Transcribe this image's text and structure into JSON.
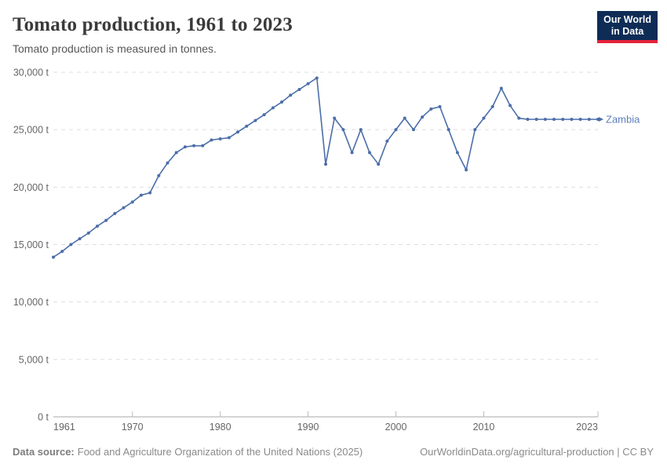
{
  "header": {
    "title": "Tomato production, 1961 to 2023",
    "subtitle": "Tomato production is measured in tonnes."
  },
  "logo": {
    "line1": "Our World",
    "line2": "in Data",
    "bg_color": "#0e2c55",
    "accent_color": "#e5233c"
  },
  "footer": {
    "source_label": "Data source:",
    "source_text": "Food and Agriculture Organization of the United Nations (2025)",
    "right_text": "OurWorldinData.org/agricultural-production | CC BY"
  },
  "chart_data": {
    "type": "line",
    "title": "Tomato production, 1961 to 2023",
    "subtitle": "Tomato production is measured in tonnes.",
    "xlabel": "",
    "ylabel": "",
    "unit": "t",
    "xlim": [
      1961,
      2023
    ],
    "ylim": [
      0,
      30000
    ],
    "x_ticks": [
      1961,
      1970,
      1980,
      1990,
      2000,
      2010,
      2023
    ],
    "y_ticks": [
      0,
      5000,
      10000,
      15000,
      20000,
      25000,
      30000
    ],
    "grid": true,
    "legend_position": "end-of-line-label",
    "series": [
      {
        "name": "Zambia",
        "color": "#4c6ea9",
        "label_color": "#5c7db9",
        "x": [
          1961,
          1962,
          1963,
          1964,
          1965,
          1966,
          1967,
          1968,
          1969,
          1970,
          1971,
          1972,
          1973,
          1974,
          1975,
          1976,
          1977,
          1978,
          1979,
          1980,
          1981,
          1982,
          1983,
          1984,
          1985,
          1986,
          1987,
          1988,
          1989,
          1990,
          1991,
          1992,
          1993,
          1994,
          1995,
          1996,
          1997,
          1998,
          1999,
          2000,
          2001,
          2002,
          2003,
          2004,
          2005,
          2006,
          2007,
          2008,
          2009,
          2010,
          2011,
          2012,
          2013,
          2014,
          2015,
          2016,
          2017,
          2018,
          2019,
          2020,
          2021,
          2022,
          2023
        ],
        "values": [
          13900,
          14400,
          15000,
          15500,
          16000,
          16600,
          17100,
          17700,
          18200,
          18700,
          19300,
          19500,
          21000,
          22100,
          23000,
          23500,
          23600,
          23600,
          24100,
          24200,
          24300,
          24800,
          25300,
          25800,
          26300,
          26900,
          27400,
          28000,
          28500,
          29000,
          29500,
          22000,
          26000,
          25000,
          23000,
          25000,
          23000,
          22000,
          24000,
          25000,
          26000,
          25000,
          26100,
          26800,
          27000,
          25000,
          23000,
          21500,
          25000,
          26000,
          27000,
          28600,
          27100,
          26000,
          25900,
          25900,
          25900,
          25900,
          25900,
          25900,
          25900,
          25900,
          25900
        ]
      }
    ]
  }
}
